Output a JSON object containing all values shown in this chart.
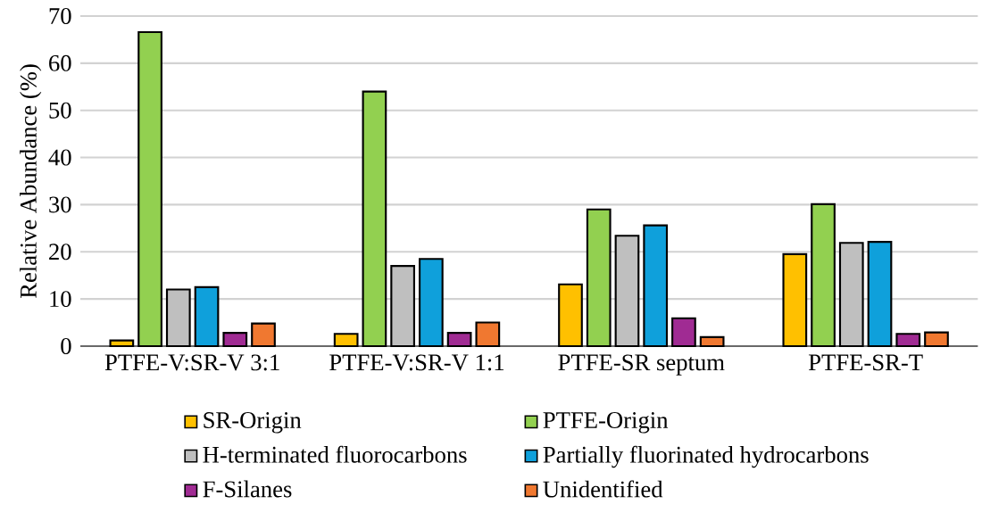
{
  "chart_data": {
    "type": "bar",
    "ylabel": "Relative Abundance (%)",
    "categories": [
      "PTFE-V:SR-V 3:1",
      "PTFE-V:SR-V 1:1",
      "PTFE-SR septum",
      "PTFE-SR-T"
    ],
    "series": [
      {
        "name": "SR-Origin",
        "color": "#ffc000",
        "values": [
          1.2,
          2.6,
          13.1,
          19.5
        ]
      },
      {
        "name": "PTFE-Origin",
        "color": "#92d050",
        "values": [
          66.6,
          54,
          29,
          30.1
        ]
      },
      {
        "name": "H-terminated fluorocarbons",
        "color": "#bfbfbf",
        "values": [
          12,
          17,
          23.4,
          21.9
        ]
      },
      {
        "name": "Partially fluorinated hydrocarbons",
        "color": "#0fa0db",
        "values": [
          12.5,
          18.5,
          25.6,
          22.1
        ]
      },
      {
        "name": "F-Silanes",
        "color": "#a02b93",
        "values": [
          2.8,
          2.8,
          5.9,
          2.6
        ]
      },
      {
        "name": "Unidentified",
        "color": "#f07830",
        "values": [
          4.8,
          5,
          1.9,
          2.9
        ]
      }
    ],
    "ylim": [
      0,
      70
    ],
    "yticks": [
      0,
      10,
      20,
      30,
      40,
      50,
      60,
      70
    ],
    "grid": "y",
    "legend": "bottom"
  }
}
